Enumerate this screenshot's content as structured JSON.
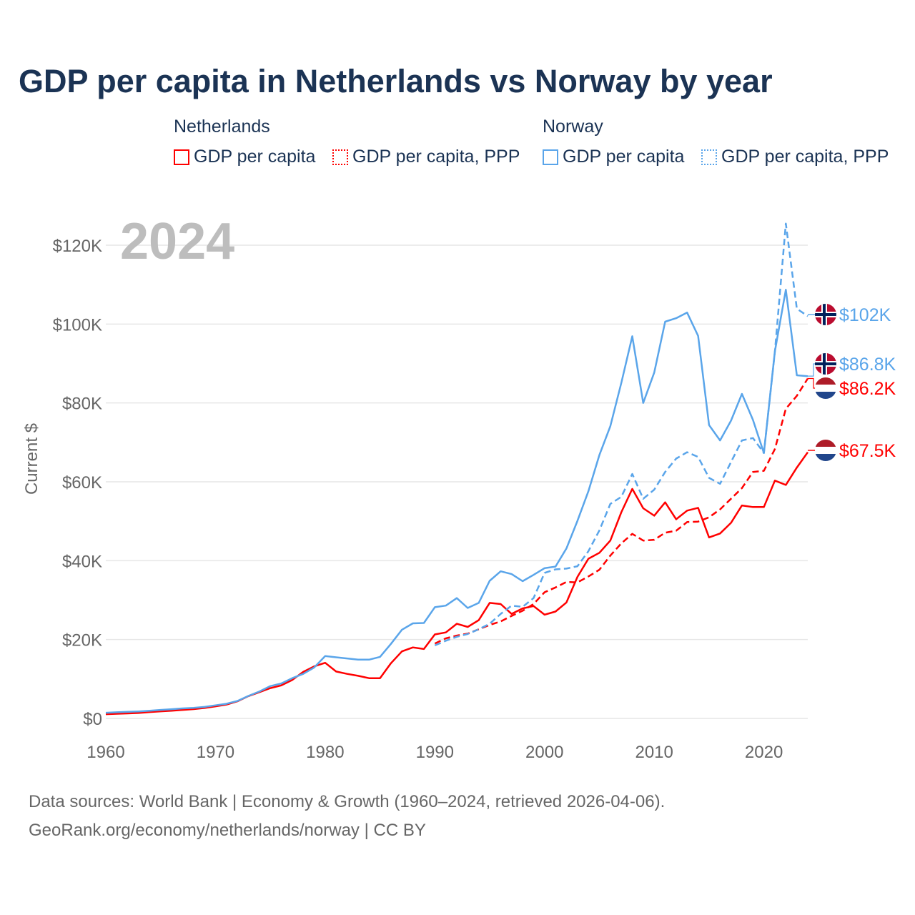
{
  "title": "GDP per capita in Netherlands vs Norway by year",
  "legend": {
    "groups": [
      {
        "name": "Netherlands",
        "items": [
          "GDP per capita",
          "GDP per capita, PPP"
        ],
        "color": "#ff0000"
      },
      {
        "name": "Norway",
        "items": [
          "GDP per capita",
          "GDP per capita, PPP"
        ],
        "color": "#5aa5ea"
      }
    ]
  },
  "footer": {
    "line1": "Data sources: World Bank | Economy & Growth (1960–2024, retrieved 2026-04-06).",
    "line2": "GeoRank.org/economy/netherlands/norway | CC BY"
  },
  "chart_data": {
    "type": "line",
    "title": "GDP per capita in Netherlands vs Norway by year",
    "year_label": "2024",
    "ylabel": "Current $",
    "xlabel": "",
    "xlim": [
      1960,
      2024
    ],
    "ylim": [
      0,
      120000
    ],
    "x_ticks": [
      "1960",
      "1970",
      "1980",
      "1990",
      "2000",
      "2010",
      "2020"
    ],
    "y_ticks": [
      "$0",
      "$20K",
      "$40K",
      "$60K",
      "$80K",
      "$100K",
      "$120K"
    ],
    "grid": true,
    "units": "thousand USD",
    "series": [
      {
        "name": "Netherlands GDP per capita",
        "color": "#ff0000",
        "dash": false,
        "start": 1960,
        "end_label": "$67.5K",
        "flag": "netherlands",
        "values": [
          1.07,
          1.17,
          1.27,
          1.37,
          1.61,
          1.79,
          1.95,
          2.15,
          2.35,
          2.64,
          3.05,
          3.49,
          4.34,
          5.65,
          6.66,
          7.68,
          8.37,
          9.73,
          11.8,
          13.2,
          14.1,
          11.9,
          11.3,
          10.8,
          10.2,
          10.2,
          14.0,
          17.0,
          18.0,
          17.6,
          21.3,
          21.8,
          24.0,
          23.2,
          24.9,
          29.3,
          29.0,
          26.5,
          27.9,
          28.5,
          26.3,
          27.1,
          29.4,
          35.9,
          40.5,
          42.0,
          45.1,
          52.3,
          58.2,
          53.3,
          51.4,
          54.8,
          50.5,
          52.7,
          53.4,
          45.9,
          46.9,
          49.6,
          54.0,
          53.6,
          53.6,
          60.3,
          59.2,
          63.6,
          67.5
        ]
      },
      {
        "name": "Netherlands GDP per capita, PPP",
        "color": "#ff0000",
        "dash": true,
        "start": 1990,
        "end_label": "$86.2K",
        "flag": "netherlands",
        "values": [
          19.0,
          20.3,
          21.0,
          21.5,
          22.6,
          23.7,
          24.6,
          26.0,
          27.3,
          29.0,
          32.0,
          33.2,
          34.6,
          34.5,
          36.0,
          37.7,
          41.3,
          44.4,
          46.8,
          45.1,
          45.3,
          47.1,
          47.6,
          49.8,
          49.9,
          51.0,
          53.0,
          55.7,
          58.4,
          62.5,
          62.8,
          68.3,
          78.5,
          81.8,
          86.2
        ]
      },
      {
        "name": "Norway GDP per capita",
        "color": "#5aa5ea",
        "dash": false,
        "start": 1960,
        "end_label": "$86.8K",
        "flag": "norway",
        "values": [
          1.44,
          1.56,
          1.67,
          1.77,
          1.94,
          2.16,
          2.34,
          2.54,
          2.69,
          2.91,
          3.31,
          3.71,
          4.42,
          5.71,
          6.81,
          8.2,
          8.86,
          10.2,
          11.3,
          12.9,
          15.8,
          15.5,
          15.2,
          14.9,
          14.9,
          15.6,
          18.9,
          22.5,
          24.1,
          24.2,
          28.2,
          28.6,
          30.5,
          28.0,
          29.3,
          34.9,
          37.3,
          36.6,
          34.8,
          36.4,
          38.1,
          38.5,
          43.1,
          50.1,
          57.6,
          66.8,
          74.1,
          85.1,
          96.9,
          80.0,
          87.7,
          100.6,
          101.5,
          102.9,
          97.0,
          74.4,
          70.5,
          75.5,
          82.3,
          75.7,
          67.3,
          93.1,
          108.7,
          87.0,
          86.8
        ]
      },
      {
        "name": "Norway GDP per capita, PPP",
        "color": "#5aa5ea",
        "dash": true,
        "start": 1990,
        "end_label": "$102K",
        "flag": "norway",
        "values": [
          18.5,
          19.7,
          20.7,
          21.4,
          22.6,
          24.0,
          26.5,
          28.6,
          28.3,
          30.5,
          36.9,
          37.8,
          38.0,
          38.6,
          42.4,
          47.7,
          54.4,
          56.2,
          62.0,
          55.7,
          58.0,
          62.5,
          65.9,
          67.5,
          66.3,
          61.0,
          59.5,
          65.0,
          70.5,
          71.1,
          67.3,
          93.0,
          125.5,
          103.9,
          102.0
        ]
      }
    ]
  }
}
